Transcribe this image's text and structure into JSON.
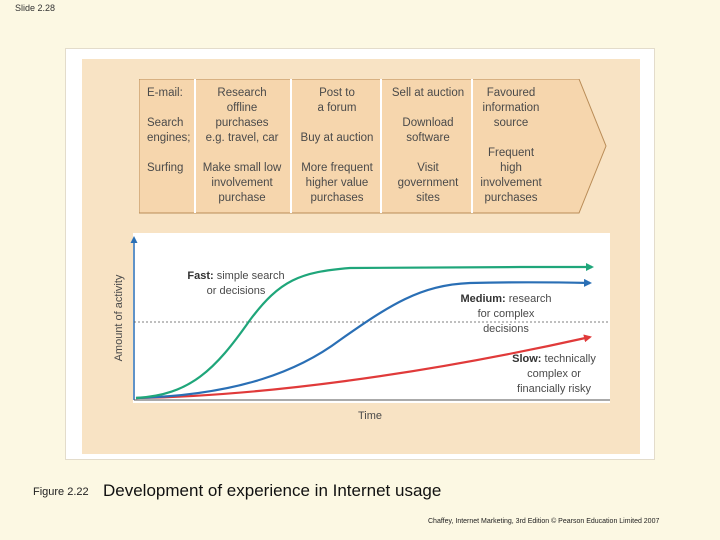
{
  "slide_number": "Slide 2.28",
  "table": {
    "col1": {
      "r1": "E-mail:",
      "r2": "Search\nengines;",
      "r3": "Surfing"
    },
    "col2": {
      "r1": "Research\noffline\npurchases\ne.g. travel, car",
      "r3": "Make small low\ninvolvement\npurchase"
    },
    "col3": {
      "r1": "Post to\na forum",
      "r2": "Buy at auction",
      "r3": "More frequent\nhigher value\npurchases"
    },
    "col4": {
      "r1": "Sell at auction",
      "r2": "Download\nsoftware",
      "r3": "Visit\ngovernment\nsites"
    },
    "col5": {
      "r1": "Favoured\ninformation\nsource",
      "r2": "Frequent\nhigh\ninvolvement\npurchases"
    }
  },
  "chart": {
    "ylabel": "Amount of activity",
    "xlabel": "Time",
    "fast": {
      "bold": "Fast:",
      "rest": " simple search\nor decisions"
    },
    "medium": {
      "bold": "Medium:",
      "rest": " research\nfor complex\ndecisions"
    },
    "slow": {
      "bold": "Slow:",
      "rest": " technically\ncomplex or\nfinancially risky"
    },
    "colors": {
      "fast": "#1fa67a",
      "medium": "#2a6fb5",
      "slow": "#e03a3a"
    }
  },
  "caption": {
    "figure_label": "Figure 2.22",
    "title": "Development of experience in Internet usage",
    "credit": "Chaffey, Internet Marketing, 3rd Edition © Pearson Education Limited 2007"
  }
}
